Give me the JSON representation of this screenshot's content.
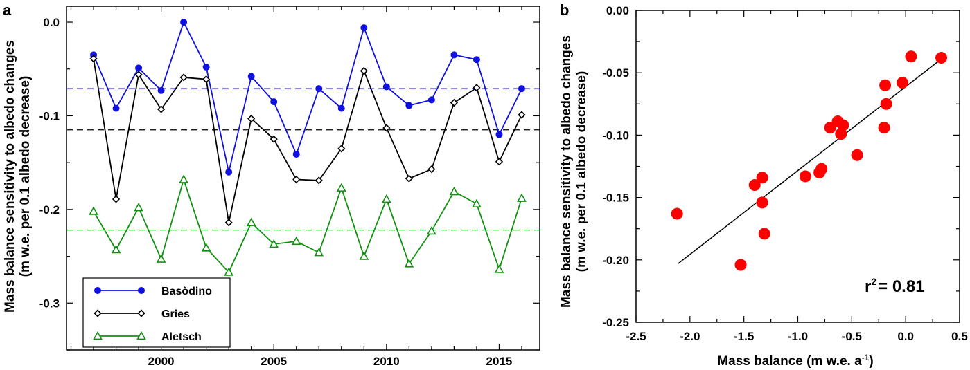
{
  "chart_data": [
    {
      "panel_label": "a",
      "type": "line",
      "ylabel": "Mass balance sensitivity to albedo changes",
      "ylabel2": "(m w.e. per 0.1 albedo decrease)",
      "xlabel": "",
      "xlim": [
        1995.8,
        2016.8
      ],
      "ylim": [
        -0.35,
        0.017
      ],
      "xticks": [
        2000,
        2005,
        2010,
        2015
      ],
      "yticks": [
        0.0,
        -0.1,
        -0.2,
        -0.3
      ],
      "ytick_labels": [
        "0.0",
        "-0.1",
        "-0.2",
        "-0.3"
      ],
      "x": [
        1997,
        1998,
        1999,
        2000,
        2001,
        2002,
        2003,
        2004,
        2005,
        2006,
        2007,
        2008,
        2009,
        2010,
        2011,
        2012,
        2013,
        2014,
        2015,
        2016
      ],
      "series": [
        {
          "name": "Basòdino",
          "color": "#1010e0",
          "marker": "filled-circle",
          "values": [
            -0.035,
            -0.092,
            -0.049,
            -0.073,
            0.0,
            -0.048,
            -0.16,
            -0.058,
            -0.085,
            -0.141,
            -0.071,
            -0.092,
            -0.006,
            -0.069,
            -0.089,
            -0.083,
            -0.035,
            -0.04,
            -0.12,
            -0.071
          ],
          "mean": -0.071
        },
        {
          "name": "Gries",
          "color": "#000000",
          "marker": "open-diamond",
          "values": [
            -0.039,
            -0.189,
            -0.056,
            -0.093,
            -0.059,
            -0.061,
            -0.214,
            -0.103,
            -0.125,
            -0.168,
            -0.169,
            -0.135,
            -0.052,
            -0.113,
            -0.167,
            -0.157,
            -0.086,
            -0.07,
            -0.149,
            -0.099
          ],
          "mean": -0.115
        },
        {
          "name": "Aletsch",
          "color": "#119011",
          "marker": "open-triangle",
          "values": [
            -0.202,
            -0.243,
            -0.198,
            -0.253,
            -0.168,
            -0.241,
            -0.267,
            -0.214,
            -0.237,
            -0.234,
            -0.246,
            -0.177,
            -0.25,
            -0.189,
            -0.258,
            -0.223,
            -0.181,
            -0.194,
            -0.264,
            -0.188
          ],
          "mean": -0.222
        }
      ],
      "mean_lines": "dashed",
      "legend_position": "bottom-left"
    },
    {
      "panel_label": "b",
      "type": "scatter",
      "ylabel": "Mass balance sensitivity to albedo changes",
      "ylabel2": "(m w.e. per 0.1 albedo decrease)",
      "xlabel": "Mass balance  (m w.e. a",
      "xlabel_sup": "-1",
      "xlabel_end": ")",
      "xlim": [
        -2.5,
        0.5
      ],
      "ylim": [
        -0.25,
        0.0
      ],
      "xticks": [
        -2.5,
        -2.0,
        -1.5,
        -1.0,
        -0.5,
        0.0,
        0.5
      ],
      "xtick_labels": [
        "-2.5",
        "-2.0",
        "-1.5",
        "-1.0",
        "-0.5",
        "0.0",
        "0.5"
      ],
      "yticks": [
        0.0,
        -0.05,
        -0.1,
        -0.15,
        -0.2,
        -0.25
      ],
      "ytick_labels": [
        "0.00",
        "-0.05",
        "-0.10",
        "-0.15",
        "-0.20",
        "-0.25"
      ],
      "color": "#ff0000",
      "points": [
        {
          "x": -2.12,
          "y": -0.163
        },
        {
          "x": -1.53,
          "y": -0.204
        },
        {
          "x": -1.4,
          "y": -0.14
        },
        {
          "x": -1.33,
          "y": -0.134
        },
        {
          "x": -1.33,
          "y": -0.154
        },
        {
          "x": -1.31,
          "y": -0.179
        },
        {
          "x": -0.93,
          "y": -0.133
        },
        {
          "x": -0.8,
          "y": -0.13
        },
        {
          "x": -0.78,
          "y": -0.127
        },
        {
          "x": -0.7,
          "y": -0.094
        },
        {
          "x": -0.63,
          "y": -0.089
        },
        {
          "x": -0.6,
          "y": -0.099
        },
        {
          "x": -0.58,
          "y": -0.092
        },
        {
          "x": -0.45,
          "y": -0.116
        },
        {
          "x": -0.2,
          "y": -0.094
        },
        {
          "x": -0.19,
          "y": -0.06
        },
        {
          "x": -0.18,
          "y": -0.075
        },
        {
          "x": -0.03,
          "y": -0.058
        },
        {
          "x": 0.05,
          "y": -0.037
        },
        {
          "x": 0.33,
          "y": -0.038
        }
      ],
      "fit_line": {
        "x": [
          -2.11,
          0.33
        ],
        "y": [
          -0.203,
          -0.039
        ]
      },
      "annotation_prefix": "r",
      "annotation_sup": "2",
      "annotation_value": "= 0.81"
    }
  ]
}
